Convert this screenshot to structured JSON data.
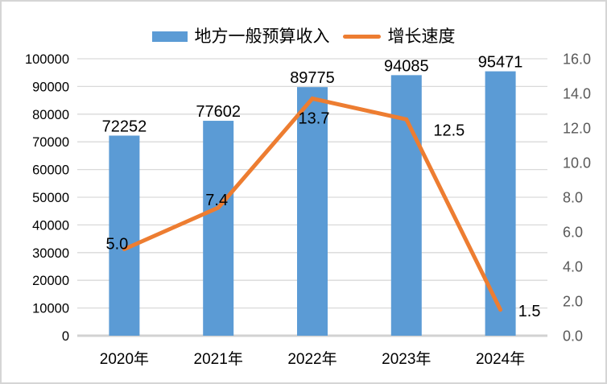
{
  "chart_data": {
    "type": "combo-bar-line",
    "categories": [
      "2020年",
      "2021年",
      "2022年",
      "2023年",
      "2024年"
    ],
    "series": [
      {
        "name": "地方一般预算收入",
        "chart": "bar",
        "axis": "left",
        "color": "#5B9BD5",
        "values": [
          72252,
          77602,
          89775,
          94085,
          95471
        ],
        "labels": [
          "72252",
          "77602",
          "89775",
          "94085",
          "95471"
        ]
      },
      {
        "name": "增长速度",
        "chart": "line",
        "axis": "right",
        "color": "#ED7D31",
        "values": [
          5.0,
          7.4,
          13.7,
          12.5,
          1.5
        ],
        "labels": [
          "5.0",
          "7.4",
          "13.7",
          "12.5",
          "1.5"
        ]
      }
    ],
    "left_axis": {
      "min": 0,
      "max": 100000,
      "step": 10000,
      "labels": [
        "100000",
        "90000",
        "80000",
        "70000",
        "60000",
        "50000",
        "40000",
        "30000",
        "20000",
        "10000",
        "0"
      ]
    },
    "right_axis": {
      "min": 0.0,
      "max": 16.0,
      "step": 2.0,
      "labels": [
        "16.0",
        "14.0",
        "12.0",
        "10.0",
        "8.0",
        "6.0",
        "4.0",
        "2.0",
        "0.0"
      ]
    },
    "grid": true,
    "legend_position": "top-center",
    "title": ""
  },
  "colors": {
    "bar": "#5B9BD5",
    "line": "#ED7D31",
    "gridline": "#D9D9D9",
    "baseline": "#D2D2D2",
    "left_tick_text": "#000000",
    "right_tick_text": "#595959",
    "category_text": "#000000",
    "data_label_text": "#000000",
    "border": "#D5D5D5",
    "background": "#FFFFFF"
  }
}
